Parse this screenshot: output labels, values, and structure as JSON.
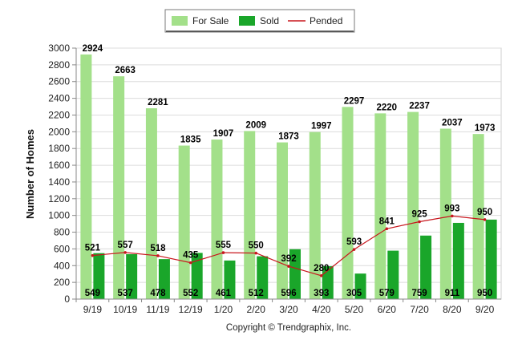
{
  "chart_data": {
    "type": "bar",
    "categories": [
      "9/19",
      "10/19",
      "11/19",
      "12/19",
      "1/20",
      "2/20",
      "3/20",
      "4/20",
      "5/20",
      "6/20",
      "7/20",
      "8/20",
      "9/20"
    ],
    "series": [
      {
        "name": "For Sale",
        "type": "bar",
        "color": "#a3e08a",
        "values": [
          2924,
          2663,
          2281,
          1835,
          1907,
          2009,
          1873,
          1997,
          2297,
          2220,
          2237,
          2037,
          1973
        ]
      },
      {
        "name": "Sold",
        "type": "bar",
        "color": "#1aa62a",
        "values": [
          549,
          537,
          478,
          552,
          461,
          512,
          596,
          393,
          305,
          579,
          759,
          911,
          950
        ]
      },
      {
        "name": "Pended",
        "type": "line",
        "color": "#c8161d",
        "values": [
          521,
          557,
          518,
          435,
          555,
          550,
          392,
          280,
          593,
          841,
          925,
          993,
          950
        ]
      }
    ],
    "ylabel": "Number of Homes",
    "xlabel": "",
    "ylim": [
      0,
      3000
    ],
    "yticks": [
      0,
      200,
      400,
      600,
      800,
      1000,
      1200,
      1400,
      1600,
      1800,
      2000,
      2200,
      2400,
      2600,
      2800,
      3000
    ],
    "grid": true,
    "legend": "top-center"
  },
  "copyright": "Copyright © Trendgraphix, Inc."
}
